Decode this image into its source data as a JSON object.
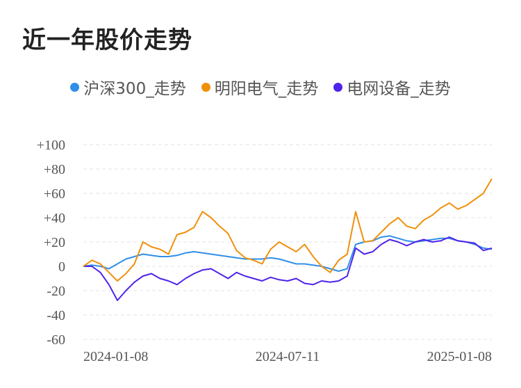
{
  "chart_data": {
    "type": "line",
    "title": "近一年股价走势",
    "xlabel": "",
    "ylabel": "",
    "ylim": [
      -60,
      100
    ],
    "yticks": [
      "+100",
      "+80",
      "+60",
      "+40",
      "+20",
      "0",
      "-20",
      "-40",
      "-60"
    ],
    "xticks": [
      "2024-01-08",
      "2024-07-11",
      "2025-01-08"
    ],
    "grid": true,
    "legend_position": "top-center",
    "x": [
      0,
      5,
      10,
      15,
      20,
      25,
      30,
      35,
      40,
      45,
      50,
      55,
      60,
      65,
      70,
      75,
      80,
      85,
      90,
      95,
      100,
      105,
      110,
      115,
      120,
      125,
      130,
      135,
      140,
      145,
      150,
      155,
      160,
      165,
      170,
      175,
      180,
      185,
      190,
      195,
      200,
      205,
      210,
      215,
      220,
      225,
      230,
      235,
      240
    ],
    "series": [
      {
        "name": "沪深300_走势",
        "color": "#2f8fe8",
        "values": [
          0,
          1,
          0,
          -2,
          2,
          6,
          8,
          10,
          9,
          8,
          8,
          9,
          11,
          12,
          11,
          10,
          9,
          8,
          7,
          6,
          6,
          6,
          7,
          6,
          4,
          2,
          2,
          1,
          0,
          -2,
          -4,
          -2,
          18,
          20,
          21,
          24,
          25,
          23,
          21,
          20,
          21,
          22,
          23,
          23,
          21,
          20,
          18,
          15,
          14
        ]
      },
      {
        "name": "明阳电气_走势",
        "color": "#f0900a",
        "values": [
          0,
          5,
          2,
          -5,
          -12,
          -6,
          2,
          20,
          16,
          14,
          10,
          26,
          28,
          32,
          45,
          40,
          33,
          27,
          13,
          7,
          5,
          2,
          14,
          20,
          16,
          12,
          18,
          8,
          0,
          -5,
          5,
          10,
          45,
          20,
          21,
          28,
          35,
          40,
          33,
          31,
          38,
          42,
          48,
          52,
          47,
          50,
          55,
          60,
          72
        ]
      },
      {
        "name": "电网设备_走势",
        "color": "#4f23ea",
        "values": [
          0,
          0,
          -5,
          -15,
          -28,
          -20,
          -13,
          -8,
          -6,
          -10,
          -12,
          -15,
          -10,
          -6,
          -3,
          -2,
          -6,
          -10,
          -5,
          -8,
          -10,
          -12,
          -9,
          -11,
          -12,
          -10,
          -14,
          -15,
          -12,
          -13,
          -12,
          -8,
          15,
          10,
          12,
          18,
          22,
          20,
          17,
          20,
          22,
          20,
          21,
          24,
          21,
          20,
          19,
          13,
          15
        ]
      }
    ]
  }
}
